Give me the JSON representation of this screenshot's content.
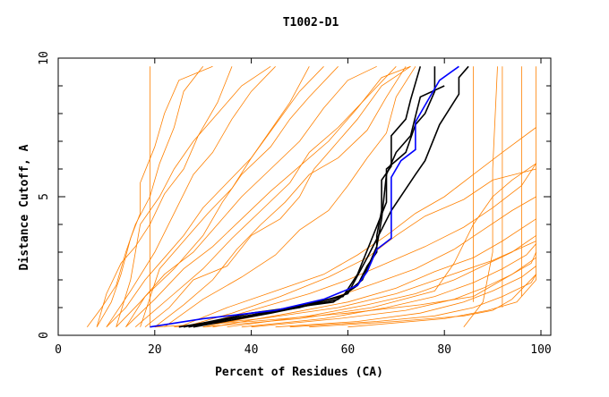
{
  "chart_data": {
    "type": "line",
    "title": "T1002-D1",
    "xlabel": "Percent of Residues (CA)",
    "ylabel": "Distance Cutoff, A",
    "xlim": [
      0,
      100
    ],
    "ylim": [
      0,
      10
    ],
    "xticks": [
      0,
      20,
      40,
      60,
      80,
      100
    ],
    "yticks": [
      0,
      5,
      10
    ],
    "grid": false,
    "colors": {
      "other": "#ff8000",
      "highlight": "#0000ff",
      "group": "#000000"
    },
    "series_other": [
      [
        [
          6,
          0.3
        ],
        [
          9,
          1.0
        ],
        [
          12,
          1.8
        ],
        [
          14,
          3.0
        ],
        [
          16,
          4.0
        ],
        [
          19,
          5.0
        ],
        [
          21,
          6.2
        ],
        [
          24,
          7.5
        ],
        [
          26,
          8.8
        ],
        [
          30,
          9.7
        ]
      ],
      [
        [
          8,
          0.3
        ],
        [
          11,
          1.2
        ],
        [
          13,
          2.2
        ],
        [
          15,
          3.5
        ],
        [
          17,
          4.4
        ],
        [
          17,
          5.5
        ],
        [
          20,
          6.8
        ],
        [
          22,
          8.0
        ],
        [
          25,
          9.2
        ],
        [
          32,
          9.7
        ]
      ],
      [
        [
          8,
          0.3
        ],
        [
          10,
          1.5
        ],
        [
          13,
          2.6
        ],
        [
          16,
          3.2
        ],
        [
          19,
          4.0
        ],
        [
          22,
          5.1
        ],
        [
          26,
          6.0
        ],
        [
          29,
          7.2
        ],
        [
          33,
          8.4
        ],
        [
          36,
          9.7
        ]
      ],
      [
        [
          10,
          0.3
        ],
        [
          14,
          1.0
        ],
        [
          18,
          2.0
        ],
        [
          22,
          2.8
        ],
        [
          26,
          3.6
        ],
        [
          30,
          4.6
        ],
        [
          35,
          5.5
        ],
        [
          40,
          6.4
        ],
        [
          45,
          7.6
        ],
        [
          50,
          8.8
        ],
        [
          55,
          9.7
        ]
      ],
      [
        [
          12,
          0.3
        ],
        [
          17,
          1.2
        ],
        [
          22,
          2.2
        ],
        [
          28,
          3.0
        ],
        [
          33,
          4.0
        ],
        [
          38,
          5.0
        ],
        [
          44,
          6.0
        ],
        [
          50,
          7.0
        ],
        [
          55,
          8.2
        ],
        [
          60,
          9.2
        ],
        [
          66,
          9.7
        ]
      ],
      [
        [
          14,
          0.3
        ],
        [
          20,
          1.3
        ],
        [
          26,
          2.4
        ],
        [
          32,
          3.2
        ],
        [
          38,
          4.2
        ],
        [
          44,
          5.2
        ],
        [
          50,
          6.1
        ],
        [
          56,
          7.0
        ],
        [
          62,
          8.2
        ],
        [
          67,
          9.3
        ],
        [
          73,
          9.7
        ]
      ],
      [
        [
          16,
          0.3
        ],
        [
          24,
          1.5
        ],
        [
          30,
          2.4
        ],
        [
          36,
          3.5
        ],
        [
          42,
          4.5
        ],
        [
          48,
          5.5
        ],
        [
          52,
          6.6
        ],
        [
          58,
          7.5
        ],
        [
          64,
          8.6
        ],
        [
          70,
          9.7
        ]
      ],
      [
        [
          18,
          0.3
        ],
        [
          23,
          1.0
        ],
        [
          28,
          2.0
        ],
        [
          35,
          2.5
        ],
        [
          40,
          3.6
        ],
        [
          46,
          4.2
        ],
        [
          50,
          5.0
        ],
        [
          53,
          6.0
        ],
        [
          57,
          6.8
        ],
        [
          62,
          7.8
        ],
        [
          67,
          9.0
        ],
        [
          73,
          9.7
        ]
      ],
      [
        [
          20,
          0.3
        ],
        [
          26,
          1.1
        ],
        [
          32,
          2.0
        ],
        [
          37,
          3.1
        ],
        [
          42,
          4.0
        ],
        [
          47,
          4.8
        ],
        [
          52,
          5.8
        ],
        [
          58,
          6.4
        ],
        [
          64,
          7.4
        ],
        [
          68,
          8.6
        ],
        [
          72,
          9.7
        ]
      ],
      [
        [
          22,
          0.3
        ],
        [
          30,
          1.3
        ],
        [
          38,
          2.1
        ],
        [
          45,
          2.9
        ],
        [
          50,
          3.8
        ],
        [
          56,
          4.5
        ],
        [
          60,
          5.4
        ],
        [
          64,
          6.4
        ],
        [
          68,
          7.3
        ],
        [
          70,
          8.6
        ],
        [
          74,
          9.7
        ]
      ],
      [
        [
          25,
          0.3
        ],
        [
          35,
          1.0
        ],
        [
          45,
          1.6
        ],
        [
          55,
          2.2
        ],
        [
          62,
          2.9
        ],
        [
          68,
          3.6
        ],
        [
          74,
          4.4
        ],
        [
          80,
          5.0
        ],
        [
          86,
          5.8
        ],
        [
          92,
          6.6
        ],
        [
          99,
          7.5
        ]
      ],
      [
        [
          28,
          0.3
        ],
        [
          40,
          0.9
        ],
        [
          52,
          1.5
        ],
        [
          60,
          2.0
        ],
        [
          68,
          2.6
        ],
        [
          76,
          3.2
        ],
        [
          84,
          3.9
        ],
        [
          90,
          4.6
        ],
        [
          96,
          5.4
        ],
        [
          99,
          6.2
        ]
      ],
      [
        [
          30,
          0.3
        ],
        [
          44,
          0.8
        ],
        [
          56,
          1.3
        ],
        [
          66,
          1.9
        ],
        [
          74,
          2.4
        ],
        [
          82,
          3.1
        ],
        [
          88,
          3.8
        ],
        [
          94,
          4.5
        ],
        [
          99,
          5.0
        ]
      ],
      [
        [
          32,
          0.3
        ],
        [
          48,
          0.8
        ],
        [
          60,
          1.2
        ],
        [
          70,
          1.7
        ],
        [
          78,
          2.3
        ],
        [
          86,
          2.8
        ],
        [
          92,
          3.4
        ],
        [
          99,
          4.2
        ]
      ],
      [
        [
          35,
          0.3
        ],
        [
          52,
          0.7
        ],
        [
          64,
          1.1
        ],
        [
          74,
          1.5
        ],
        [
          82,
          2.0
        ],
        [
          88,
          2.5
        ],
        [
          94,
          3.0
        ],
        [
          99,
          3.6
        ]
      ],
      [
        [
          38,
          0.3
        ],
        [
          55,
          0.6
        ],
        [
          68,
          1.0
        ],
        [
          78,
          1.4
        ],
        [
          86,
          1.9
        ],
        [
          92,
          2.4
        ],
        [
          97,
          2.9
        ],
        [
          99,
          3.3
        ]
      ],
      [
        [
          40,
          0.3
        ],
        [
          58,
          0.6
        ],
        [
          72,
          0.9
        ],
        [
          82,
          1.3
        ],
        [
          88,
          1.7
        ],
        [
          94,
          2.2
        ],
        [
          99,
          2.8
        ]
      ],
      [
        [
          45,
          0.3
        ],
        [
          62,
          0.5
        ],
        [
          75,
          0.8
        ],
        [
          84,
          1.2
        ],
        [
          90,
          1.6
        ],
        [
          96,
          2.1
        ],
        [
          99,
          2.5
        ]
      ],
      [
        [
          48,
          0.3
        ],
        [
          66,
          0.5
        ],
        [
          78,
          0.7
        ],
        [
          86,
          1.0
        ],
        [
          92,
          1.4
        ],
        [
          98,
          1.9
        ],
        [
          99,
          2.2
        ]
      ],
      [
        [
          52,
          0.3
        ],
        [
          70,
          0.5
        ],
        [
          84,
          0.7
        ],
        [
          90,
          0.9
        ],
        [
          94,
          1.3
        ],
        [
          99,
          2.2
        ]
      ],
      [
        [
          20,
          0.3
        ],
        [
          40,
          0.5
        ],
        [
          60,
          0.8
        ],
        [
          75,
          1.1
        ],
        [
          86,
          1.4
        ],
        [
          92,
          2.0
        ],
        [
          98,
          2.6
        ],
        [
          99,
          3.0
        ]
      ],
      [
        [
          24,
          0.3
        ],
        [
          42,
          0.6
        ],
        [
          58,
          1.0
        ],
        [
          70,
          1.5
        ],
        [
          80,
          2.1
        ],
        [
          90,
          2.7
        ],
        [
          99,
          3.4
        ]
      ],
      [
        [
          26,
          0.3
        ],
        [
          36,
          0.8
        ],
        [
          46,
          1.4
        ],
        [
          56,
          2.1
        ],
        [
          64,
          2.8
        ],
        [
          70,
          3.6
        ],
        [
          76,
          4.3
        ],
        [
          84,
          4.9
        ],
        [
          90,
          5.6
        ],
        [
          99,
          6.0
        ]
      ],
      [
        [
          14,
          0.3
        ],
        [
          18,
          1.4
        ],
        [
          24,
          2.4
        ],
        [
          30,
          3.6
        ],
        [
          34,
          4.8
        ],
        [
          38,
          5.8
        ],
        [
          44,
          6.8
        ],
        [
          48,
          7.8
        ],
        [
          52,
          8.6
        ],
        [
          58,
          9.7
        ]
      ],
      [
        [
          10,
          0.3
        ],
        [
          15,
          1.6
        ],
        [
          20,
          3.0
        ],
        [
          24,
          4.4
        ],
        [
          28,
          5.8
        ],
        [
          32,
          6.6
        ],
        [
          36,
          7.8
        ],
        [
          40,
          8.8
        ],
        [
          45,
          9.7
        ]
      ],
      [
        [
          84,
          0.3
        ],
        [
          88,
          1.2
        ],
        [
          90,
          3.0
        ],
        [
          90,
          6.0
        ],
        [
          91,
          9.7
        ]
      ],
      [
        [
          60,
          0.3
        ],
        [
          80,
          0.6
        ],
        [
          89,
          0.9
        ],
        [
          95,
          1.2
        ],
        [
          99,
          2.0
        ]
      ],
      [
        [
          30,
          0.3
        ],
        [
          50,
          0.6
        ],
        [
          65,
          1.0
        ],
        [
          78,
          1.6
        ],
        [
          82,
          2.6
        ],
        [
          86,
          4.0
        ],
        [
          90,
          5.0
        ],
        [
          94,
          5.6
        ],
        [
          99,
          6.2
        ]
      ],
      [
        [
          12,
          0.3
        ],
        [
          15,
          2.0
        ],
        [
          17,
          4.0
        ],
        [
          21,
          5.0
        ],
        [
          24,
          6.0
        ],
        [
          28,
          7.0
        ],
        [
          33,
          8.0
        ],
        [
          38,
          9.0
        ],
        [
          44,
          9.7
        ]
      ],
      [
        [
          17,
          0.3
        ],
        [
          21,
          2.4
        ],
        [
          26,
          3.4
        ],
        [
          31,
          4.4
        ],
        [
          36,
          5.3
        ],
        [
          40,
          6.4
        ],
        [
          44,
          7.4
        ],
        [
          48,
          8.4
        ],
        [
          52,
          9.7
        ]
      ],
      [
        [
          19,
          0.3
        ],
        [
          19,
          9.7
        ]
      ],
      [
        [
          86,
          1.2
        ],
        [
          86,
          9.7
        ]
      ],
      [
        [
          92,
          1.0
        ],
        [
          92,
          9.7
        ]
      ],
      [
        [
          96,
          1.4
        ],
        [
          96,
          9.7
        ]
      ],
      [
        [
          99,
          2.0
        ],
        [
          99,
          9.7
        ]
      ]
    ],
    "series_highlight": [
      [
        [
          19,
          0.3
        ],
        [
          30,
          0.6
        ],
        [
          45,
          0.9
        ],
        [
          55,
          1.3
        ],
        [
          62,
          1.8
        ],
        [
          64,
          2.3
        ],
        [
          66,
          3.1
        ],
        [
          69,
          3.5
        ],
        [
          69,
          5.7
        ],
        [
          71,
          6.3
        ],
        [
          74,
          6.7
        ],
        [
          74,
          7.7
        ],
        [
          77,
          8.6
        ],
        [
          79,
          9.2
        ],
        [
          83,
          9.7
        ]
      ]
    ],
    "series_group": [
      [
        [
          26,
          0.3
        ],
        [
          40,
          0.8
        ],
        [
          57,
          1.2
        ],
        [
          62,
          1.8
        ],
        [
          64,
          2.5
        ],
        [
          66,
          3.0
        ],
        [
          66,
          3.6
        ],
        [
          67,
          4.5
        ],
        [
          67,
          5.6
        ],
        [
          69,
          6.1
        ],
        [
          69,
          7.2
        ],
        [
          72,
          7.8
        ],
        [
          73,
          8.5
        ],
        [
          75,
          9.7
        ]
      ],
      [
        [
          27,
          0.3
        ],
        [
          45,
          0.9
        ],
        [
          59,
          1.4
        ],
        [
          62,
          2.2
        ],
        [
          65,
          3.5
        ],
        [
          68,
          4.8
        ],
        [
          68,
          6.0
        ],
        [
          72,
          6.6
        ],
        [
          74,
          7.6
        ],
        [
          76,
          8.0
        ],
        [
          78,
          8.8
        ],
        [
          78,
          9.7
        ]
      ],
      [
        [
          25,
          0.3
        ],
        [
          50,
          1.0
        ],
        [
          60,
          1.5
        ],
        [
          64,
          2.8
        ],
        [
          69,
          4.5
        ],
        [
          74,
          5.8
        ],
        [
          76,
          6.3
        ],
        [
          79,
          7.6
        ],
        [
          83,
          8.7
        ],
        [
          83,
          9.3
        ],
        [
          85,
          9.7
        ]
      ],
      [
        [
          28,
          0.3
        ],
        [
          44,
          0.8
        ],
        [
          58,
          1.3
        ],
        [
          63,
          2.0
        ],
        [
          66,
          3.2
        ],
        [
          67,
          4.2
        ],
        [
          68,
          5.8
        ],
        [
          70,
          6.6
        ],
        [
          73,
          7.2
        ],
        [
          75,
          8.6
        ],
        [
          80,
          9.0
        ]
      ]
    ]
  }
}
